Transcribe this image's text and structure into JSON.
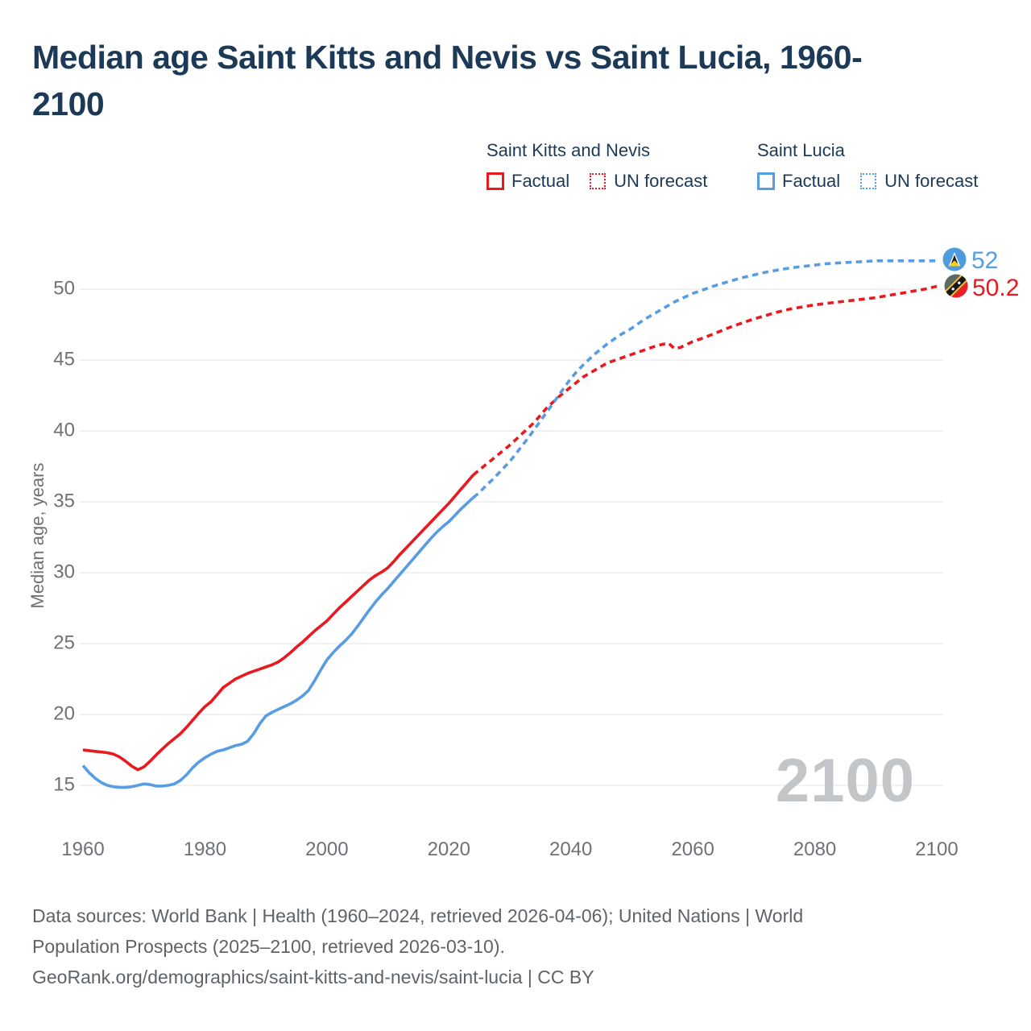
{
  "title_line1": "Median age Saint Kitts and Nevis vs Saint Lucia, 1960-",
  "title_line2": "2100",
  "legend": {
    "groups": [
      {
        "name": "Saint Kitts and Nevis",
        "color": "#e8191f",
        "items": [
          {
            "label": "Factual",
            "line_style": "solid"
          },
          {
            "label": "UN forecast",
            "line_style": "dotted"
          }
        ]
      },
      {
        "name": "Saint Lucia",
        "color": "#589ce1",
        "items": [
          {
            "label": "Factual",
            "line_style": "solid"
          },
          {
            "label": "UN forecast",
            "line_style": "dotted"
          }
        ]
      }
    ]
  },
  "chart_data": {
    "type": "line",
    "title": "Median age Saint Kitts and Nevis vs Saint Lucia, 1960-2100",
    "xlabel": "",
    "ylabel": "Median age, years",
    "x_ticks": [
      1960,
      1980,
      2000,
      2020,
      2040,
      2060,
      2080,
      2100
    ],
    "y_ticks": [
      15,
      20,
      25,
      30,
      35,
      40,
      45,
      50
    ],
    "xlim": [
      1960,
      2100
    ],
    "ylim": [
      15,
      52
    ],
    "grid": "horizontal",
    "legend_position": "top",
    "watermark": "2100",
    "series": [
      {
        "id": "skn-factual",
        "name": "Saint Kitts and Nevis — Factual",
        "color": "#e8191f",
        "dash": "solid",
        "points": [
          [
            1960,
            17.5
          ],
          [
            1961,
            17.45
          ],
          [
            1962,
            17.4
          ],
          [
            1963,
            17.35
          ],
          [
            1964,
            17.3
          ],
          [
            1965,
            17.2
          ],
          [
            1966,
            17.0
          ],
          [
            1967,
            16.7
          ],
          [
            1968,
            16.35
          ],
          [
            1969,
            16.1
          ],
          [
            1970,
            16.3
          ],
          [
            1971,
            16.7
          ],
          [
            1972,
            17.15
          ],
          [
            1973,
            17.55
          ],
          [
            1974,
            17.95
          ],
          [
            1975,
            18.3
          ],
          [
            1976,
            18.65
          ],
          [
            1977,
            19.1
          ],
          [
            1978,
            19.6
          ],
          [
            1979,
            20.1
          ],
          [
            1980,
            20.55
          ],
          [
            1981,
            20.9
          ],
          [
            1982,
            21.4
          ],
          [
            1983,
            21.9
          ],
          [
            1984,
            22.2
          ],
          [
            1985,
            22.5
          ],
          [
            1986,
            22.7
          ],
          [
            1987,
            22.9
          ],
          [
            1988,
            23.05
          ],
          [
            1989,
            23.2
          ],
          [
            1990,
            23.35
          ],
          [
            1991,
            23.5
          ],
          [
            1992,
            23.7
          ],
          [
            1993,
            24.0
          ],
          [
            1994,
            24.35
          ],
          [
            1995,
            24.75
          ],
          [
            1996,
            25.1
          ],
          [
            1997,
            25.5
          ],
          [
            1998,
            25.9
          ],
          [
            1999,
            26.25
          ],
          [
            2000,
            26.6
          ],
          [
            2001,
            27.05
          ],
          [
            2002,
            27.5
          ],
          [
            2003,
            27.9
          ],
          [
            2004,
            28.3
          ],
          [
            2005,
            28.7
          ],
          [
            2006,
            29.1
          ],
          [
            2007,
            29.5
          ],
          [
            2008,
            29.8
          ],
          [
            2009,
            30.05
          ],
          [
            2010,
            30.35
          ],
          [
            2011,
            30.8
          ],
          [
            2012,
            31.3
          ],
          [
            2013,
            31.75
          ],
          [
            2014,
            32.2
          ],
          [
            2015,
            32.65
          ],
          [
            2016,
            33.1
          ],
          [
            2017,
            33.55
          ],
          [
            2018,
            34.0
          ],
          [
            2019,
            34.45
          ],
          [
            2020,
            34.9
          ],
          [
            2021,
            35.4
          ],
          [
            2022,
            35.9
          ],
          [
            2023,
            36.4
          ],
          [
            2024,
            36.9
          ]
        ]
      },
      {
        "id": "skn-forecast",
        "name": "Saint Kitts and Nevis — UN forecast",
        "color": "#e8191f",
        "dash": "dashed",
        "points": [
          [
            2024,
            36.9
          ],
          [
            2025,
            37.25
          ],
          [
            2026,
            37.6
          ],
          [
            2027,
            37.95
          ],
          [
            2028,
            38.3
          ],
          [
            2029,
            38.65
          ],
          [
            2030,
            39.0
          ],
          [
            2031,
            39.4
          ],
          [
            2032,
            39.8
          ],
          [
            2033,
            40.2
          ],
          [
            2034,
            40.6
          ],
          [
            2035,
            41.1
          ],
          [
            2036,
            41.6
          ],
          [
            2037,
            42.0
          ],
          [
            2038,
            42.4
          ],
          [
            2039,
            42.75
          ],
          [
            2040,
            43.1
          ],
          [
            2041,
            43.45
          ],
          [
            2042,
            43.8
          ],
          [
            2043,
            44.05
          ],
          [
            2044,
            44.3
          ],
          [
            2045,
            44.55
          ],
          [
            2046,
            44.8
          ],
          [
            2047,
            44.95
          ],
          [
            2048,
            45.1
          ],
          [
            2049,
            45.25
          ],
          [
            2050,
            45.4
          ],
          [
            2051,
            45.55
          ],
          [
            2052,
            45.7
          ],
          [
            2053,
            45.85
          ],
          [
            2054,
            46.0
          ],
          [
            2055,
            46.1
          ],
          [
            2056,
            46.2
          ],
          [
            2057,
            45.8
          ],
          [
            2058,
            45.9
          ],
          [
            2059,
            46.1
          ],
          [
            2060,
            46.3
          ],
          [
            2062,
            46.6
          ],
          [
            2064,
            46.95
          ],
          [
            2066,
            47.3
          ],
          [
            2068,
            47.6
          ],
          [
            2070,
            47.9
          ],
          [
            2072,
            48.15
          ],
          [
            2074,
            48.4
          ],
          [
            2076,
            48.6
          ],
          [
            2078,
            48.75
          ],
          [
            2080,
            48.9
          ],
          [
            2082,
            49.0
          ],
          [
            2084,
            49.1
          ],
          [
            2086,
            49.2
          ],
          [
            2088,
            49.3
          ],
          [
            2090,
            49.4
          ],
          [
            2092,
            49.55
          ],
          [
            2094,
            49.7
          ],
          [
            2096,
            49.85
          ],
          [
            2098,
            50.0
          ],
          [
            2100,
            50.2
          ]
        ]
      },
      {
        "id": "slu-factual",
        "name": "Saint Lucia — Factual",
        "color": "#589ce1",
        "dash": "solid",
        "points": [
          [
            1960,
            16.4
          ],
          [
            1961,
            15.9
          ],
          [
            1962,
            15.5
          ],
          [
            1963,
            15.2
          ],
          [
            1964,
            15.0
          ],
          [
            1965,
            14.9
          ],
          [
            1966,
            14.85
          ],
          [
            1967,
            14.85
          ],
          [
            1968,
            14.9
          ],
          [
            1969,
            15.0
          ],
          [
            1970,
            15.1
          ],
          [
            1971,
            15.05
          ],
          [
            1972,
            14.95
          ],
          [
            1973,
            14.95
          ],
          [
            1974,
            15.0
          ],
          [
            1975,
            15.1
          ],
          [
            1976,
            15.35
          ],
          [
            1977,
            15.75
          ],
          [
            1978,
            16.25
          ],
          [
            1979,
            16.65
          ],
          [
            1980,
            16.95
          ],
          [
            1981,
            17.2
          ],
          [
            1982,
            17.4
          ],
          [
            1983,
            17.5
          ],
          [
            1984,
            17.65
          ],
          [
            1985,
            17.8
          ],
          [
            1986,
            17.9
          ],
          [
            1987,
            18.1
          ],
          [
            1988,
            18.65
          ],
          [
            1989,
            19.35
          ],
          [
            1990,
            19.9
          ],
          [
            1991,
            20.15
          ],
          [
            1992,
            20.35
          ],
          [
            1993,
            20.55
          ],
          [
            1994,
            20.75
          ],
          [
            1995,
            21.0
          ],
          [
            1996,
            21.3
          ],
          [
            1997,
            21.7
          ],
          [
            1998,
            22.4
          ],
          [
            1999,
            23.15
          ],
          [
            2000,
            23.85
          ],
          [
            2001,
            24.35
          ],
          [
            2002,
            24.8
          ],
          [
            2003,
            25.2
          ],
          [
            2004,
            25.65
          ],
          [
            2005,
            26.2
          ],
          [
            2006,
            26.8
          ],
          [
            2007,
            27.4
          ],
          [
            2008,
            27.95
          ],
          [
            2009,
            28.45
          ],
          [
            2010,
            28.9
          ],
          [
            2011,
            29.4
          ],
          [
            2012,
            29.9
          ],
          [
            2013,
            30.4
          ],
          [
            2014,
            30.9
          ],
          [
            2015,
            31.4
          ],
          [
            2016,
            31.9
          ],
          [
            2017,
            32.4
          ],
          [
            2018,
            32.85
          ],
          [
            2019,
            33.25
          ],
          [
            2020,
            33.6
          ],
          [
            2021,
            34.05
          ],
          [
            2022,
            34.5
          ],
          [
            2023,
            34.9
          ],
          [
            2024,
            35.3
          ]
        ]
      },
      {
        "id": "slu-forecast",
        "name": "Saint Lucia — UN forecast",
        "color": "#589ce1",
        "dash": "dashed",
        "points": [
          [
            2024,
            35.3
          ],
          [
            2025,
            35.65
          ],
          [
            2026,
            36.1
          ],
          [
            2027,
            36.5
          ],
          [
            2028,
            36.95
          ],
          [
            2029,
            37.4
          ],
          [
            2030,
            37.85
          ],
          [
            2031,
            38.4
          ],
          [
            2032,
            38.95
          ],
          [
            2033,
            39.5
          ],
          [
            2034,
            40.1
          ],
          [
            2035,
            40.7
          ],
          [
            2036,
            41.3
          ],
          [
            2037,
            41.9
          ],
          [
            2038,
            42.5
          ],
          [
            2039,
            43.1
          ],
          [
            2040,
            43.7
          ],
          [
            2041,
            44.2
          ],
          [
            2042,
            44.65
          ],
          [
            2043,
            45.05
          ],
          [
            2044,
            45.45
          ],
          [
            2045,
            45.8
          ],
          [
            2046,
            46.15
          ],
          [
            2047,
            46.45
          ],
          [
            2048,
            46.75
          ],
          [
            2049,
            47.0
          ],
          [
            2050,
            47.25
          ],
          [
            2051,
            47.55
          ],
          [
            2052,
            47.85
          ],
          [
            2053,
            48.1
          ],
          [
            2054,
            48.35
          ],
          [
            2055,
            48.6
          ],
          [
            2056,
            48.85
          ],
          [
            2057,
            49.1
          ],
          [
            2058,
            49.3
          ],
          [
            2059,
            49.5
          ],
          [
            2060,
            49.7
          ],
          [
            2062,
            50.0
          ],
          [
            2064,
            50.3
          ],
          [
            2066,
            50.55
          ],
          [
            2068,
            50.8
          ],
          [
            2070,
            51.0
          ],
          [
            2072,
            51.2
          ],
          [
            2074,
            51.35
          ],
          [
            2076,
            51.5
          ],
          [
            2078,
            51.6
          ],
          [
            2080,
            51.7
          ],
          [
            2082,
            51.8
          ],
          [
            2084,
            51.85
          ],
          [
            2086,
            51.9
          ],
          [
            2088,
            51.95
          ],
          [
            2090,
            52.0
          ],
          [
            2092,
            52.0
          ],
          [
            2094,
            52.0
          ],
          [
            2096,
            52.0
          ],
          [
            2098,
            52.0
          ],
          [
            2100,
            52.0
          ]
        ]
      }
    ],
    "end_labels": [
      {
        "country": "Saint Lucia",
        "value": "52",
        "color": "#589ce1"
      },
      {
        "country": "Saint Kitts and Nevis",
        "value": "50.2",
        "color": "#e8191f"
      }
    ]
  },
  "footer": {
    "line1": "Data sources: World Bank | Health (1960–2024, retrieved 2026-04-06); United Nations | World",
    "line2": "Population Prospects (2025–2100, retrieved 2026-03-10).",
    "line3": "GeoRank.org/demographics/saint-kitts-and-nevis/saint-lucia | CC BY"
  }
}
